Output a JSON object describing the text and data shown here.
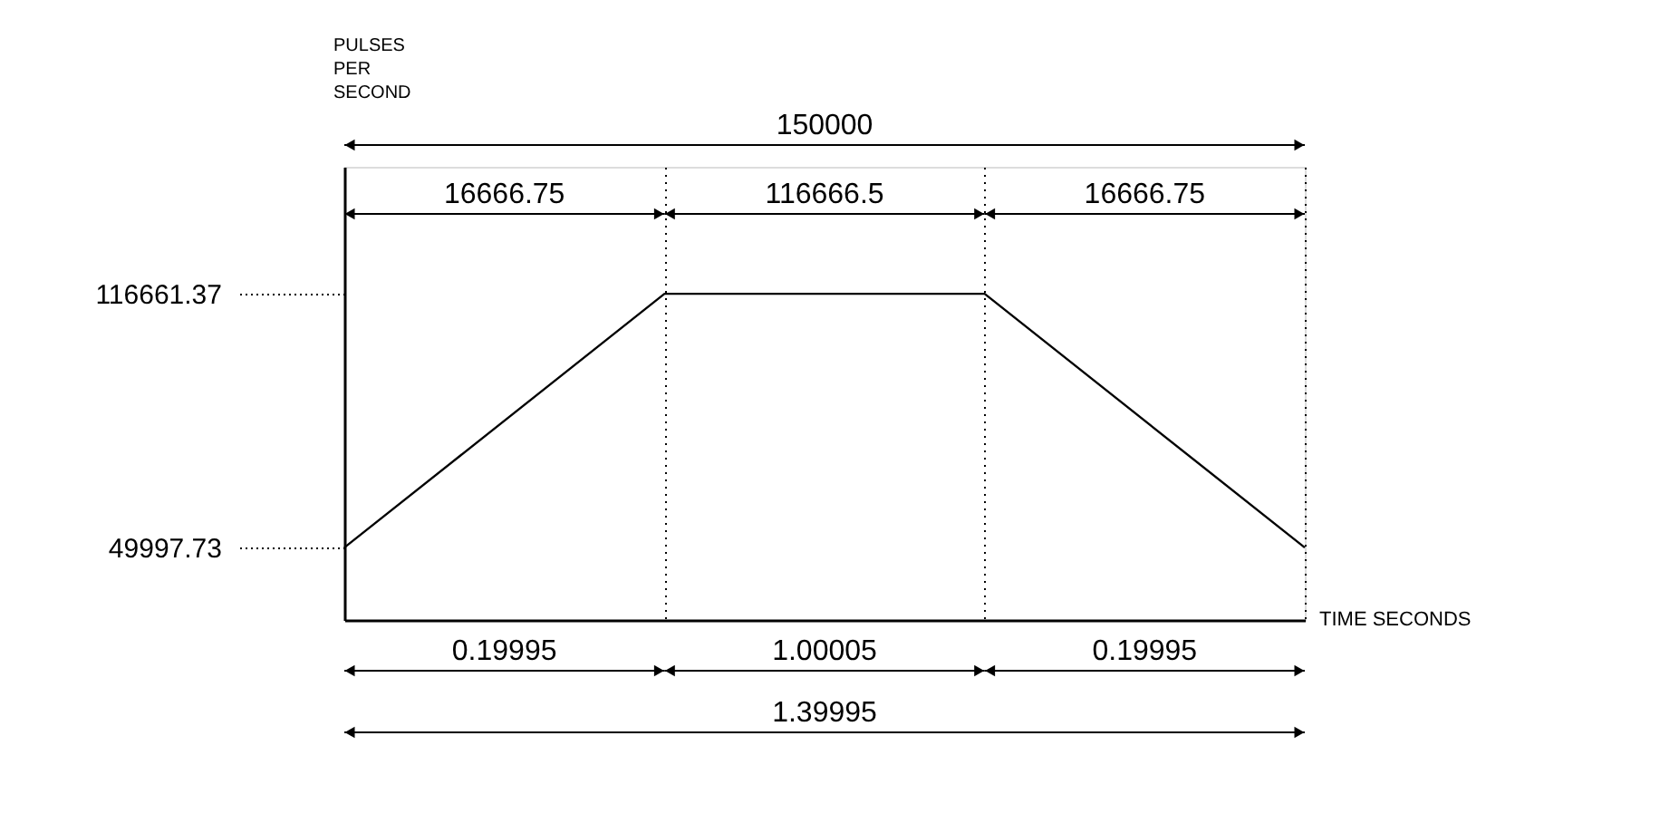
{
  "chart_data": {
    "type": "line",
    "xlabel": "TIME SECONDS",
    "ylabel": "PULSES PER SECOND",
    "categories": [
      null,
      null,
      null,
      null
    ],
    "series": [
      {
        "color": "#000000",
        "values": [
          49997.73,
          116661.37,
          116661.37,
          49997.73
        ]
      }
    ],
    "ylim": [
      31000,
      150000
    ],
    "yticks": [
      49997.73,
      116661.37
    ],
    "tick_labels": "y",
    "grid": "x",
    "annotations": [
      "150000",
      "16666.75",
      "116666.5",
      "16666.75",
      "0.19995",
      "1.00005",
      "0.19995",
      "1.39995"
    ]
  }
}
